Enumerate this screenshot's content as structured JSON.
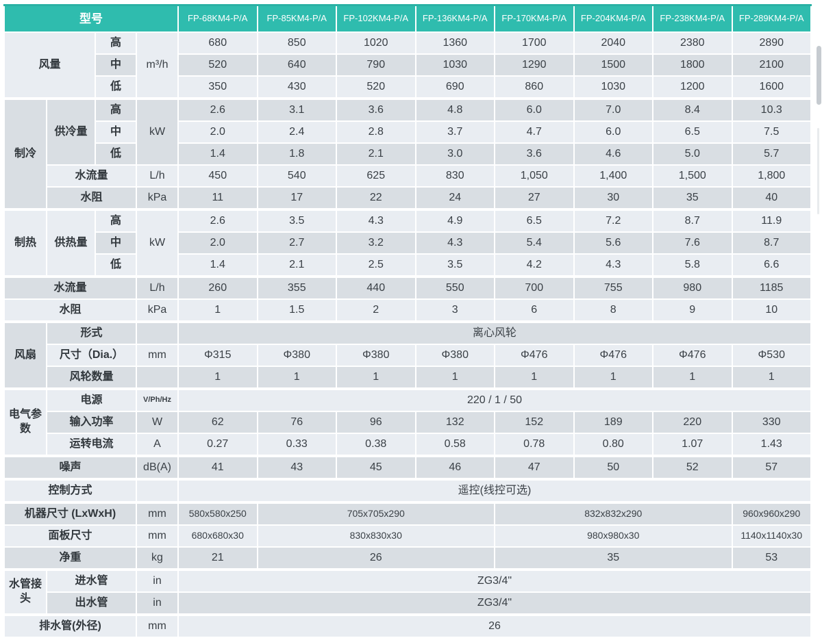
{
  "colors": {
    "header_teal": "#2fbcae",
    "row_light": "#e9edf2",
    "row_dark": "#d9dee3",
    "label_flat": "#dee2e8",
    "text": "#3a4046"
  },
  "t": {
    "header": {
      "title": "型号",
      "models": [
        "FP-68KM4-P/A",
        "FP-85KM4-P/A",
        "FP-102KM4-P/A",
        "FP-136KM4-P/A",
        "FP-170KM4-P/A",
        "FP-204KM4-P/A",
        "FP-238KM4-P/A",
        "FP-289KM4-P/A"
      ]
    },
    "rows": [
      {
        "group": "风量",
        "sub": "高",
        "unit": "m³/h",
        "values": [
          "680",
          "850",
          "1020",
          "1360",
          "1700",
          "2040",
          "2380",
          "2890"
        ]
      },
      {
        "sub": "中",
        "values": [
          "520",
          "640",
          "790",
          "1030",
          "1290",
          "1500",
          "1800",
          "2100"
        ]
      },
      {
        "sub": "低",
        "values": [
          "350",
          "430",
          "520",
          "690",
          "860",
          "1030",
          "1200",
          "1600"
        ]
      },
      {
        "group": "制冷",
        "sub": "供冷量",
        "sub2": "高",
        "unit": "kW",
        "values": [
          "2.6",
          "3.1",
          "3.6",
          "4.8",
          "6.0",
          "7.0",
          "8.4",
          "10.3"
        ]
      },
      {
        "sub2": "中",
        "values": [
          "2.0",
          "2.4",
          "2.8",
          "3.7",
          "4.7",
          "6.0",
          "6.5",
          "7.5"
        ]
      },
      {
        "sub2": "低",
        "values": [
          "1.4",
          "1.8",
          "2.1",
          "3.0",
          "3.6",
          "4.6",
          "5.0",
          "5.7"
        ]
      },
      {
        "sub": "水流量",
        "unit": "L/h",
        "values": [
          "450",
          "540",
          "625",
          "830",
          "1,050",
          "1,400",
          "1,500",
          "1,800"
        ]
      },
      {
        "sub": "水阻",
        "unit": "kPa",
        "values": [
          "11",
          "17",
          "22",
          "24",
          "27",
          "30",
          "35",
          "40"
        ]
      },
      {
        "group": "制热",
        "sub": "供热量",
        "sub2": "高",
        "unit": "kW",
        "values": [
          "2.6",
          "3.5",
          "4.3",
          "4.9",
          "6.5",
          "7.2",
          "8.7",
          "11.9"
        ]
      },
      {
        "sub2": "中",
        "values": [
          "2.0",
          "2.7",
          "3.2",
          "4.3",
          "5.4",
          "5.6",
          "7.6",
          "8.7"
        ]
      },
      {
        "sub2": "低",
        "values": [
          "1.4",
          "2.1",
          "2.5",
          "3.5",
          "4.2",
          "4.3",
          "5.8",
          "6.6"
        ]
      },
      {
        "label": "水流量",
        "unit": "L/h",
        "values": [
          "260",
          "355",
          "440",
          "550",
          "700",
          "755",
          "980",
          "1185"
        ]
      },
      {
        "label": "水阻",
        "unit": "kPa",
        "values": [
          "1",
          "1.5",
          "2",
          "3",
          "6",
          "8",
          "9",
          "10"
        ]
      },
      {
        "group": "风扇",
        "sub": "形式",
        "unit": "",
        "value": "离心风轮"
      },
      {
        "sub": "尺寸（Dia.）",
        "unit": "mm",
        "values": [
          "Φ315",
          "Φ380",
          "Φ380",
          "Φ380",
          "Φ476",
          "Φ476",
          "Φ476",
          "Φ530"
        ]
      },
      {
        "sub": "风轮数量",
        "unit": "",
        "values": [
          "1",
          "1",
          "1",
          "1",
          "1",
          "1",
          "1",
          "1"
        ]
      },
      {
        "group": "电气参数",
        "sub": "电源",
        "unit": "V/Ph/Hz",
        "value": "220 / 1 / 50"
      },
      {
        "sub": "输入功率",
        "unit": "W",
        "values": [
          "62",
          "76",
          "96",
          "132",
          "152",
          "189",
          "220",
          "330"
        ]
      },
      {
        "sub": "运转电流",
        "unit": "A",
        "values": [
          "0.27",
          "0.33",
          "0.38",
          "0.58",
          "0.78",
          "0.80",
          "1.07",
          "1.43"
        ]
      },
      {
        "label": "噪声",
        "unit": "dB(A)",
        "values": [
          "41",
          "43",
          "45",
          "46",
          "47",
          "50",
          "52",
          "57"
        ]
      },
      {
        "label": "控制方式",
        "unit": "",
        "value": "遥控(线控可选)"
      },
      {
        "label": "机器尺寸 (LxWxH)",
        "unit": "mm",
        "values": [
          "580x580x250",
          "705x705x290",
          "832x832x290",
          "960x960x290"
        ]
      },
      {
        "label": "面板尺寸",
        "unit": "mm",
        "values": [
          "680x680x30",
          "830x830x30",
          "980x980x30",
          "1140x1140x30"
        ]
      },
      {
        "label": "净重",
        "unit": "kg",
        "values": [
          "21",
          "26",
          "35",
          "53"
        ]
      },
      {
        "group": "水管接头",
        "sub": "进水管",
        "unit": "in",
        "value": "ZG3/4\""
      },
      {
        "sub": "出水管",
        "unit": "in",
        "value": "ZG3/4\""
      },
      {
        "label": "排水管(外径)",
        "unit": "mm",
        "value": "26"
      }
    ]
  }
}
